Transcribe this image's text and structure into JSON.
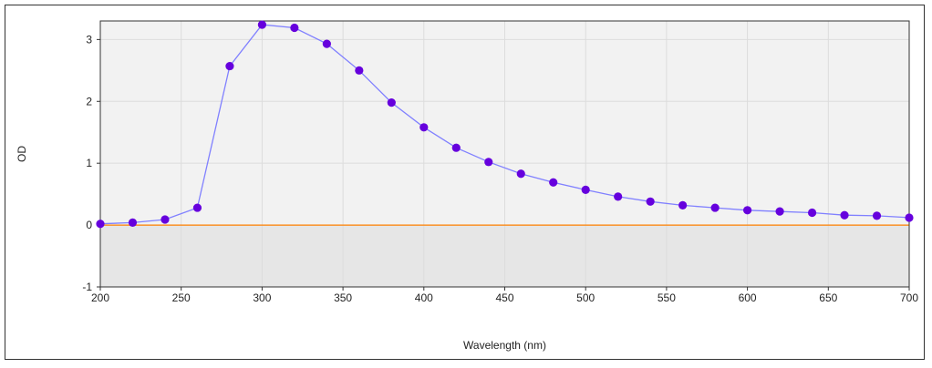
{
  "chart_data": {
    "type": "line",
    "xlabel": "Wavelength (nm)",
    "ylabel": "OD",
    "xlim": [
      200,
      700
    ],
    "ylim": [
      -1,
      3.3
    ],
    "x_ticks": [
      200,
      250,
      300,
      350,
      400,
      450,
      500,
      550,
      600,
      650,
      700
    ],
    "y_ticks": [
      -1,
      0,
      1,
      2,
      3
    ],
    "grid": true,
    "baseline": 0,
    "series": [
      {
        "x": [
          200,
          220,
          240,
          260,
          280,
          300,
          320,
          340,
          360,
          380,
          400,
          420,
          440,
          460,
          480,
          500,
          520,
          540,
          560,
          580,
          600,
          620,
          640,
          660,
          680,
          700
        ],
        "values": [
          0.02,
          0.04,
          0.09,
          0.28,
          2.57,
          3.24,
          3.19,
          2.93,
          2.5,
          1.98,
          1.58,
          1.25,
          1.02,
          0.83,
          0.69,
          0.57,
          0.46,
          0.38,
          0.32,
          0.28,
          0.24,
          0.22,
          0.2,
          0.16,
          0.15,
          0.12
        ]
      }
    ],
    "colors": {
      "line": "#8080ff",
      "marker": "#6600dd",
      "baseline": "#ff8000",
      "plot_bg_upper": "#f2f2f2",
      "plot_bg_lower": "#e6e6e6",
      "grid": "#dcdcdc"
    }
  }
}
